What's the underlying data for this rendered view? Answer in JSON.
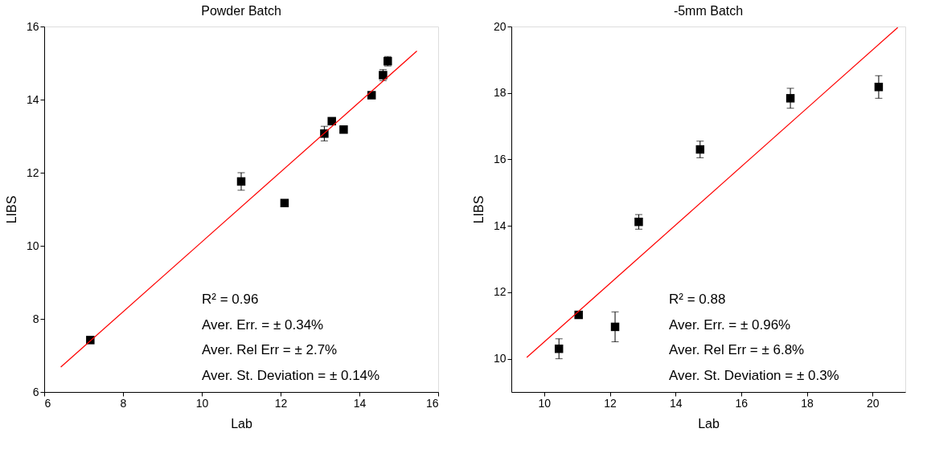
{
  "chart_data": [
    {
      "type": "scatter",
      "title": "Powder Batch",
      "xlabel": "Lab",
      "ylabel": "LIBS",
      "xlim": [
        6,
        16
      ],
      "ylim": [
        6,
        16
      ],
      "xticks": [
        6,
        8,
        10,
        12,
        14,
        16
      ],
      "yticks": [
        6,
        8,
        10,
        12,
        14,
        16
      ],
      "grid": false,
      "series": [
        {
          "color": "#000000",
          "marker": "square",
          "x": [
            7.17,
            11.0,
            12.1,
            13.11,
            13.3,
            13.6,
            14.31,
            14.6,
            14.72
          ],
          "values": [
            7.42,
            11.76,
            11.17,
            13.07,
            13.41,
            13.18,
            14.12,
            14.67,
            15.05
          ],
          "errors": [
            0.05,
            0.24,
            0.05,
            0.2,
            0.05,
            0.07,
            0.08,
            0.15,
            0.13
          ]
        },
        {
          "type": "line",
          "color": "#ff0000",
          "x": [
            6.42,
            15.46
          ],
          "values": [
            6.68,
            15.33
          ]
        }
      ],
      "annotations": [
        "R² = 0.96",
        "Aver. Err. = ± 0.34%",
        "Aver. Rel Err = ± 2.7%",
        "Aver. St. Deviation = ± 0.14%"
      ]
    },
    {
      "type": "scatter",
      "title": "-5mm Batch",
      "xlabel": "Lab",
      "ylabel": "LIBS",
      "xlim": [
        9,
        21
      ],
      "ylim": [
        9,
        20
      ],
      "xticks": [
        10,
        12,
        14,
        16,
        18,
        20
      ],
      "yticks": [
        10,
        12,
        14,
        16,
        18,
        20
      ],
      "grid": false,
      "series": [
        {
          "color": "#000000",
          "marker": "square",
          "x": [
            10.45,
            11.05,
            12.16,
            12.88,
            14.75,
            17.5,
            20.19
          ],
          "values": [
            10.3,
            11.32,
            10.96,
            14.12,
            16.3,
            17.84,
            18.18
          ],
          "errors": [
            0.3,
            0.1,
            0.45,
            0.22,
            0.25,
            0.3,
            0.34
          ]
        },
        {
          "type": "line",
          "color": "#ff0000",
          "x": [
            9.47,
            20.77
          ],
          "values": [
            10.04,
            19.97
          ]
        }
      ],
      "annotations": [
        "R² = 0.88",
        "Aver. Err. = ± 0.96%",
        "Aver. Rel Err = ± 6.8%",
        "Aver. St. Deviation = ± 0.3%"
      ]
    }
  ]
}
